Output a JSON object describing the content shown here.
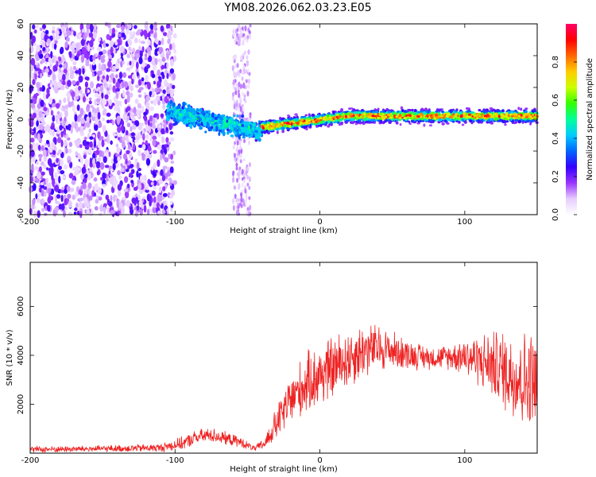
{
  "title": "YM08.2026.062.03.23.E05",
  "chart_data": [
    {
      "type": "heatmap",
      "name": "spectrogram",
      "xlabel": "Height of straight line (km)",
      "ylabel": "Frequency (Hz)",
      "xlim": [
        -200,
        150
      ],
      "ylim": [
        -60,
        60
      ],
      "xticks": [
        -200,
        -100,
        0,
        100
      ],
      "yticks": [
        -60,
        -40,
        -20,
        0,
        20,
        40,
        60
      ],
      "colorbar": {
        "label": "Normalized spectral amplitude",
        "range": [
          0,
          1
        ],
        "ticks": [
          0.0,
          0.2,
          0.4,
          0.6,
          0.8
        ],
        "colormap": [
          "#ffffff",
          "#e6ccff",
          "#9933ff",
          "#3300ff",
          "#0066ff",
          "#00ccff",
          "#00ff99",
          "#33ff00",
          "#ccff00",
          "#ffcc00",
          "#ff6600",
          "#ff0000",
          "#ff0066"
        ]
      },
      "features": [
        {
          "region": "noise",
          "x_range": [
            -200,
            -100
          ],
          "freq_range": [
            -60,
            60
          ],
          "amplitude": 0.1
        },
        {
          "region": "noise-column",
          "x_range": [
            -60,
            -48
          ],
          "freq_range": [
            -60,
            60
          ],
          "amplitude": 0.08
        },
        {
          "region": "signal-onset",
          "x_range": [
            -105,
            -40
          ],
          "center_freq": [
            5,
            -8
          ],
          "amplitude": 0.3
        },
        {
          "region": "main-signal",
          "x_range": [
            -40,
            150
          ],
          "center_freq": [
            -5,
            2
          ],
          "amplitude": 0.8
        }
      ]
    },
    {
      "type": "line",
      "name": "snr",
      "xlabel": "Height of straight line (km)",
      "ylabel": "SNR (10 * v/v)",
      "xlim": [
        -200,
        150
      ],
      "ylim": [
        0,
        7800
      ],
      "xticks": [
        -200,
        -100,
        0,
        100
      ],
      "yticks": [
        2000,
        4000,
        6000
      ],
      "color": "#ee2222",
      "envelope": {
        "x": [
          -200,
          -150,
          -110,
          -95,
          -85,
          -75,
          -65,
          -55,
          -45,
          -38,
          -30,
          -20,
          -10,
          0,
          10,
          20,
          30,
          40,
          50,
          60,
          70,
          80,
          90,
          100,
          110,
          120,
          130,
          140,
          150
        ],
        "y": [
          150,
          180,
          220,
          400,
          650,
          750,
          600,
          450,
          180,
          400,
          1200,
          2200,
          2800,
          3200,
          3500,
          3900,
          4200,
          4300,
          4200,
          4050,
          3950,
          3900,
          3950,
          4000,
          3800,
          3600,
          3300,
          3000,
          2800
        ]
      },
      "noise_amplitude": [
        150,
        150,
        200,
        300,
        350,
        350,
        300,
        250,
        120,
        300,
        800,
        1200,
        1400,
        1500,
        1500,
        1400,
        1300,
        1100,
        900,
        700,
        600,
        500,
        600,
        900,
        1200,
        1600,
        2000,
        2300,
        2500
      ]
    }
  ]
}
